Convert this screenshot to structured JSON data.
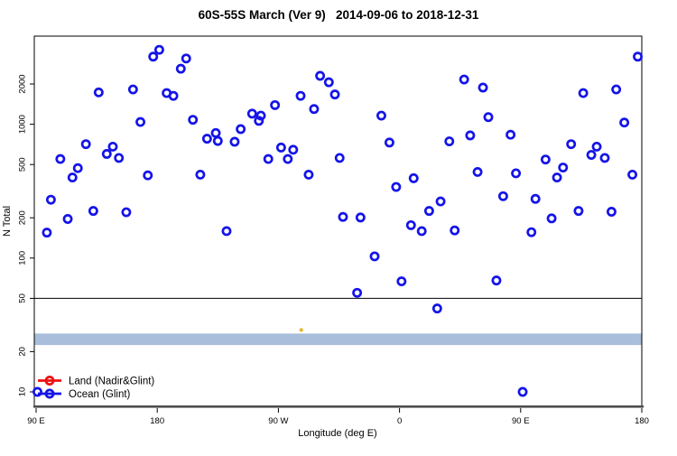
{
  "chart_data": {
    "type": "scatter",
    "title": "60S-55S March (Ver 9)   2014-09-06 to 2018-12-31",
    "xlabel": "Longitude (deg E)",
    "ylabel": "N Total",
    "x_axis": {
      "range_deg": [
        90,
        540
      ],
      "ticks": [
        {
          "pos": 90,
          "label": "90 E"
        },
        {
          "pos": 180,
          "label": "180"
        },
        {
          "pos": 270,
          "label": "90 W"
        },
        {
          "pos": 360,
          "label": "0"
        },
        {
          "pos": 450,
          "label": "90 E"
        },
        {
          "pos": 540,
          "label": "180"
        }
      ],
      "note": "longitude axis wraps: 90E to 180 repeated at both ends"
    },
    "y_axis": {
      "scale": "log10",
      "ticks": [
        10,
        20,
        50,
        100,
        200,
        500,
        1000,
        2000
      ],
      "range": [
        7.6,
        4600
      ]
    },
    "grid": "off",
    "reference_line": {
      "value": 50,
      "color": "#000000"
    },
    "band": {
      "from": 22.4,
      "to": 27.3,
      "color": "#a9bedb"
    },
    "bottom_axis_bar_color": "#4d4d4d",
    "legend": {
      "position": "bottom-left",
      "entries": [
        {
          "label": "Land (Nadir&Glint)",
          "color": "#ee1111",
          "marker": "open-circle-on-line"
        },
        {
          "label": "Ocean (Glint)",
          "color": "#1414e8",
          "marker": "open-circle-on-line"
        }
      ]
    },
    "series": [
      {
        "name": "Ocean (Glint)",
        "marker": "open-circle",
        "color": "#1414e8",
        "points": [
          [
            181.5,
            3600
          ],
          [
            177,
            3200
          ],
          [
            201.5,
            3100
          ],
          [
            197.5,
            2600
          ],
          [
            136.5,
            1730
          ],
          [
            162,
            1820
          ],
          [
            187,
            1710
          ],
          [
            192,
            1630
          ],
          [
            167.5,
            1040
          ],
          [
            127,
            710
          ],
          [
            147,
            680
          ],
          [
            142.5,
            600
          ],
          [
            151.5,
            560
          ],
          [
            108,
            550
          ],
          [
            121,
            470
          ],
          [
            117,
            400
          ],
          [
            173,
            415
          ],
          [
            101,
            273
          ],
          [
            132.5,
            225
          ],
          [
            157,
            220
          ],
          [
            113.5,
            196
          ],
          [
            98,
            155
          ],
          [
            301,
            2300
          ],
          [
            307.5,
            2060
          ],
          [
            312,
            1670
          ],
          [
            286.5,
            1630
          ],
          [
            296.5,
            1300
          ],
          [
            267.5,
            1390
          ],
          [
            250.5,
            1200
          ],
          [
            257,
            1160
          ],
          [
            206.5,
            1080
          ],
          [
            255.5,
            1060
          ],
          [
            242,
            920
          ],
          [
            223.5,
            860
          ],
          [
            217,
            780
          ],
          [
            225,
            750
          ],
          [
            237.5,
            740
          ],
          [
            272,
            670
          ],
          [
            281,
            645
          ],
          [
            262.5,
            550
          ],
          [
            277,
            550
          ],
          [
            315.5,
            560
          ],
          [
            212,
            420
          ],
          [
            292.5,
            420
          ],
          [
            408,
            2160
          ],
          [
            422,
            1880
          ],
          [
            346.5,
            1160
          ],
          [
            426,
            1130
          ],
          [
            352.5,
            730
          ],
          [
            397,
            745
          ],
          [
            412.5,
            825
          ],
          [
            418,
            440
          ],
          [
            370.5,
            395
          ],
          [
            357.5,
            340
          ],
          [
            390.5,
            265
          ],
          [
            382,
            225
          ],
          [
            318,
            203
          ],
          [
            331,
            201
          ],
          [
            537,
            3200
          ],
          [
            496.5,
            1710
          ],
          [
            521,
            1820
          ],
          [
            527,
            1030
          ],
          [
            442.5,
            835
          ],
          [
            487.5,
            710
          ],
          [
            506.5,
            680
          ],
          [
            502.5,
            590
          ],
          [
            512.5,
            560
          ],
          [
            468.5,
            545
          ],
          [
            481.5,
            475
          ],
          [
            477,
            400
          ],
          [
            446.5,
            430
          ],
          [
            533,
            420
          ],
          [
            437,
            290
          ],
          [
            461,
            277
          ],
          [
            493,
            225
          ],
          [
            517.5,
            222
          ],
          [
            473,
            198
          ],
          [
            458,
            156
          ],
          [
            231.5,
            159
          ],
          [
            368.5,
            176
          ],
          [
            376.5,
            159
          ],
          [
            401,
            161
          ],
          [
            341.5,
            103
          ],
          [
            361.5,
            67
          ],
          [
            328.5,
            55
          ],
          [
            388,
            42
          ],
          [
            432,
            68
          ],
          [
            451.5,
            10
          ],
          [
            91,
            10
          ]
        ]
      },
      {
        "name": "Land (Nadir&Glint)",
        "marker": "small-dot",
        "color": "#e8b93e",
        "points": [
          [
            287,
            29
          ]
        ]
      }
    ]
  }
}
